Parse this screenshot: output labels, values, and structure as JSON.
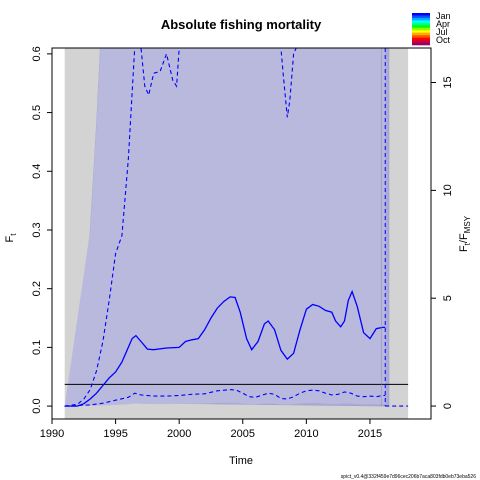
{
  "chart_data": {
    "type": "line",
    "title": "Absolute fishing mortality",
    "xlabel": "Time",
    "ylabel_left": "F",
    "ylabel_left_sub": "t",
    "ylabel_right": "F",
    "ylabel_right_sub": "t",
    "ylabel_right_sep": "/F",
    "ylabel_right_sub2": "MSY",
    "xlim": [
      1990,
      2019.8
    ],
    "ylim": [
      -0.022,
      0.61
    ],
    "y2lim": [
      -0.6,
      16.6
    ],
    "x_ticks": [
      1990,
      1995,
      2000,
      2005,
      2010,
      2015
    ],
    "y_ticks": [
      0.0,
      0.1,
      0.2,
      0.3,
      0.4,
      0.5,
      0.6
    ],
    "y2_ticks": [
      0,
      5,
      10,
      15
    ],
    "grey_region": [
      1991,
      2018
    ],
    "fmsy": 0.037,
    "data_end": 2016.2,
    "colors": {
      "estimate": "#0000ff",
      "ci_fill": "#b9b9dd",
      "grey": "#d3d3d3",
      "fmsy_line": "#000000"
    },
    "series": [
      {
        "name": "F",
        "x": [
          1991.0,
          1992.0,
          1992.5,
          1993.0,
          1993.5,
          1994.0,
          1994.5,
          1995.0,
          1995.5,
          1996.0,
          1996.3,
          1996.6,
          1997.0,
          1997.5,
          1998.0,
          1999.0,
          2000.0,
          2000.5,
          2001.0,
          2001.5,
          2002.0,
          2002.5,
          2003.0,
          2003.5,
          2004.0,
          2004.4,
          2004.8,
          2005.3,
          2005.7,
          2006.2,
          2006.7,
          2007.0,
          2007.5,
          2008.0,
          2008.5,
          2009.0,
          2009.5,
          2010.0,
          2010.5,
          2011.0,
          2011.5,
          2012.0,
          2012.3,
          2012.7,
          2013.0,
          2013.3,
          2013.6,
          2014.0,
          2014.5,
          2015.0,
          2015.5,
          2016.0,
          2016.2
        ],
        "values": [
          0.0,
          0.0,
          0.004,
          0.012,
          0.022,
          0.035,
          0.048,
          0.058,
          0.075,
          0.1,
          0.115,
          0.12,
          0.11,
          0.097,
          0.096,
          0.099,
          0.1,
          0.11,
          0.113,
          0.115,
          0.13,
          0.15,
          0.167,
          0.178,
          0.186,
          0.185,
          0.16,
          0.115,
          0.096,
          0.11,
          0.14,
          0.145,
          0.13,
          0.095,
          0.08,
          0.09,
          0.13,
          0.165,
          0.173,
          0.17,
          0.163,
          0.16,
          0.145,
          0.135,
          0.145,
          0.18,
          0.195,
          0.17,
          0.125,
          0.115,
          0.132,
          0.134,
          0.134
        ]
      },
      {
        "name": "upper",
        "x": [
          1991.0,
          1992.0,
          1992.5,
          1993.0,
          1993.5,
          1994.0,
          1994.5,
          1995.0,
          1995.5,
          1996.0,
          1996.5,
          1996.8,
          1997.0,
          1997.3,
          1997.6,
          1998.0,
          1998.5,
          1999.0,
          1999.5,
          1999.8,
          2000.0,
          2005.5,
          2005.7,
          2008.0,
          2008.2,
          2008.5,
          2008.7,
          2009.0,
          2009.2,
          2016.2
        ],
        "values": [
          0.0,
          0.003,
          0.012,
          0.028,
          0.06,
          0.11,
          0.18,
          0.26,
          0.29,
          0.42,
          0.66,
          0.7,
          0.61,
          0.545,
          0.53,
          0.567,
          0.57,
          0.6,
          0.555,
          0.545,
          0.61,
          0.61,
          0.61,
          0.61,
          0.56,
          0.492,
          0.52,
          0.6,
          0.61,
          0.61
        ]
      },
      {
        "name": "lower",
        "x": [
          1991.0,
          1993.0,
          1994.0,
          1995.0,
          1996.0,
          1996.5,
          1997.0,
          1998.0,
          1999.0,
          2000.0,
          2001.0,
          2002.0,
          2003.0,
          2004.0,
          2004.5,
          2005.0,
          2005.5,
          2006.0,
          2007.0,
          2007.5,
          2008.0,
          2008.5,
          2009.0,
          2009.5,
          2010.0,
          2010.5,
          2011.0,
          2011.5,
          2012.0,
          2012.5,
          2013.0,
          2013.5,
          2014.0,
          2014.5,
          2015.0,
          2015.5,
          2016.0,
          2016.2
        ],
        "values": [
          0.0,
          0.002,
          0.005,
          0.01,
          0.015,
          0.022,
          0.019,
          0.017,
          0.017,
          0.018,
          0.02,
          0.021,
          0.026,
          0.028,
          0.027,
          0.022,
          0.016,
          0.015,
          0.022,
          0.02,
          0.013,
          0.012,
          0.016,
          0.022,
          0.026,
          0.027,
          0.026,
          0.022,
          0.019,
          0.02,
          0.024,
          0.022,
          0.017,
          0.016,
          0.017,
          0.016,
          0.018,
          0.018
        ]
      },
      {
        "name": "forecast",
        "x": [
          2016.2,
          2016.3,
          2016.5,
          2017.0,
          2017.5,
          2018.0
        ],
        "values": [
          0.0,
          0.0,
          0.0,
          0.0,
          0.0,
          0.0
        ]
      }
    ],
    "grey_band": {
      "x": [
        1991.0,
        1991.5,
        1992.0,
        1992.5,
        1993.0,
        1993.5,
        1993.8,
        2016.2,
        2016.5
      ],
      "upper": [
        0.0,
        0.01,
        0.07,
        0.17,
        0.3,
        0.48,
        0.61,
        0.61,
        0.61
      ],
      "lower": [
        0.0,
        0.0,
        0.001,
        0.002,
        0.003,
        0.005,
        0.006,
        0.0,
        0.0
      ]
    },
    "legend": {
      "labels": [
        "Jan",
        "Apr",
        "Jul",
        "Oct"
      ],
      "colors": [
        "#0000ff",
        "#0055ff",
        "#00aaff",
        "#00ffff",
        "#00ff88",
        "#00ff00",
        "#88ff00",
        "#ffff00",
        "#ffaa00",
        "#ff5500",
        "#ff0000",
        "#cc0033",
        "#990066"
      ]
    },
    "footnote": "spict_v0.4@332f459e7d96cec206b7aca803fdb0eb73eba526"
  }
}
